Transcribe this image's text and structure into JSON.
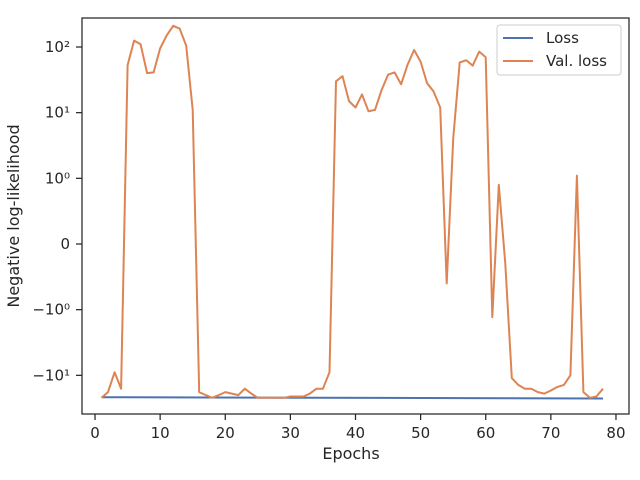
{
  "chart_data": {
    "type": "line",
    "xlabel": "Epochs",
    "ylabel": "Negative log-likelihood",
    "xlim": [
      -2,
      82
    ],
    "x_ticks": [
      "0",
      "10",
      "20",
      "30",
      "40",
      "50",
      "60",
      "70",
      "80"
    ],
    "y_scale": "symlog",
    "y_tick_labels": [
      "10²",
      "10¹",
      "10⁰",
      "0",
      "−10⁰",
      "−10¹"
    ],
    "legend_position": "top-right",
    "grid": false,
    "series": [
      {
        "name": "Loss",
        "color": "#4c72b0",
        "x": [
          1,
          78
        ],
        "y": [
          -21.5,
          -22.5
        ]
      },
      {
        "name": "Val. loss",
        "color": "#dd8452",
        "x": [
          1,
          2,
          3,
          4,
          5,
          6,
          7,
          8,
          9,
          10,
          11,
          12,
          13,
          14,
          15,
          16,
          17,
          18,
          19,
          20,
          21,
          22,
          23,
          24,
          25,
          26,
          27,
          28,
          29,
          30,
          31,
          32,
          33,
          34,
          35,
          36,
          37,
          38,
          39,
          40,
          41,
          42,
          43,
          44,
          45,
          46,
          47,
          48,
          49,
          50,
          51,
          52,
          53,
          54,
          55,
          56,
          57,
          58,
          59,
          60,
          61,
          62,
          63,
          64,
          65,
          66,
          67,
          68,
          69,
          70,
          71,
          72,
          73,
          74,
          75,
          76,
          77,
          78
        ],
        "y": [
          -22,
          -18,
          -9,
          -16,
          53,
          125,
          110,
          40,
          41,
          95,
          150,
          210,
          190,
          105,
          11,
          -18,
          -20,
          -22,
          -20,
          -18,
          -19,
          -20,
          -16,
          -19,
          -22,
          -22,
          -22,
          -22,
          -22,
          -21,
          -21,
          -21,
          -19,
          -16,
          -16,
          -9,
          30,
          36,
          15,
          12,
          19,
          10.5,
          11,
          22,
          38,
          41,
          27,
          54,
          90,
          60,
          28,
          21,
          12,
          -0.6,
          4,
          58,
          63,
          52,
          85,
          70,
          -1.3,
          0.9,
          -0.3,
          -11,
          -14,
          -16,
          -16,
          -18,
          -19,
          -17,
          -15,
          -14,
          -10,
          1.1,
          -18,
          -22,
          -21,
          -16
        ]
      }
    ]
  }
}
